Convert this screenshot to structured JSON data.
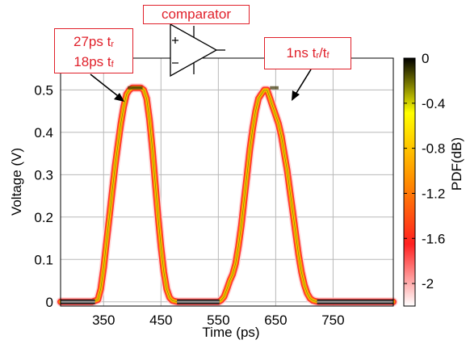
{
  "chart_data": {
    "type": "line",
    "xlabel": "Time (ps)",
    "ylabel": "Voltage (V)",
    "x_ticks": [
      "350",
      "450",
      "550",
      "650",
      "750"
    ],
    "y_ticks": [
      "0",
      "0.1",
      "0.2",
      "0.3",
      "0.4",
      "0.5"
    ],
    "xlim": [
      275,
      855
    ],
    "ylim": [
      -0.01,
      0.575
    ],
    "grid": true,
    "series": [
      {
        "x": [
          275,
          330,
          340,
          345,
          350,
          355,
          360,
          365,
          370,
          375,
          380,
          385,
          390,
          395,
          400,
          405,
          410,
          415,
          420,
          425,
          430,
          435,
          440,
          445,
          450,
          455,
          460,
          465,
          470,
          475,
          480,
          550,
          555,
          560,
          565,
          570,
          575,
          580,
          585,
          590,
          595,
          600,
          605,
          610,
          615,
          620,
          625,
          630,
          635,
          640,
          645,
          650,
          655,
          660,
          665,
          670,
          675,
          680,
          685,
          690,
          695,
          700,
          705,
          710,
          715,
          720,
          725,
          855
        ],
        "values": [
          0,
          0,
          0.005,
          0.03,
          0.08,
          0.14,
          0.2,
          0.26,
          0.32,
          0.37,
          0.42,
          0.46,
          0.49,
          0.5,
          0.505,
          0.505,
          0.505,
          0.505,
          0.5,
          0.48,
          0.43,
          0.36,
          0.28,
          0.2,
          0.13,
          0.07,
          0.03,
          0.01,
          0.003,
          0.001,
          0,
          0,
          0.004,
          0.012,
          0.03,
          0.05,
          0.065,
          0.09,
          0.13,
          0.18,
          0.24,
          0.3,
          0.36,
          0.41,
          0.45,
          0.48,
          0.49,
          0.5,
          0.5,
          0.48,
          0.46,
          0.44,
          0.42,
          0.39,
          0.35,
          0.31,
          0.26,
          0.21,
          0.16,
          0.11,
          0.07,
          0.04,
          0.02,
          0.008,
          0.003,
          0.001,
          0,
          0
        ]
      }
    ],
    "colorbar": {
      "label": "PDF(dB)",
      "ticks": [
        "0",
        "-0.4",
        "-0.8",
        "-1.2",
        "-1.6",
        "-2"
      ],
      "range": [
        -2.2,
        0
      ],
      "colors": [
        "#ffffff",
        "#ff2020",
        "#ff8c00",
        "#ffff00",
        "#000000"
      ]
    },
    "annotations": [
      {
        "text_main": "27ps t",
        "sub1": "r",
        "text_main2": "18ps t",
        "sub2": "f",
        "target_x": 380,
        "target_y": 0.505
      },
      {
        "text_main": "1ns t",
        "sub1": "r",
        "slash": "/t",
        "sub2": "f",
        "target_x": 658,
        "target_y": 0.5
      }
    ],
    "inset_label": "comparator"
  },
  "colors": {
    "trace_outer": "#ff3030",
    "trace_mid": "#ff9000",
    "trace_inner": "#f3e500",
    "annotation": "#e0202a"
  }
}
